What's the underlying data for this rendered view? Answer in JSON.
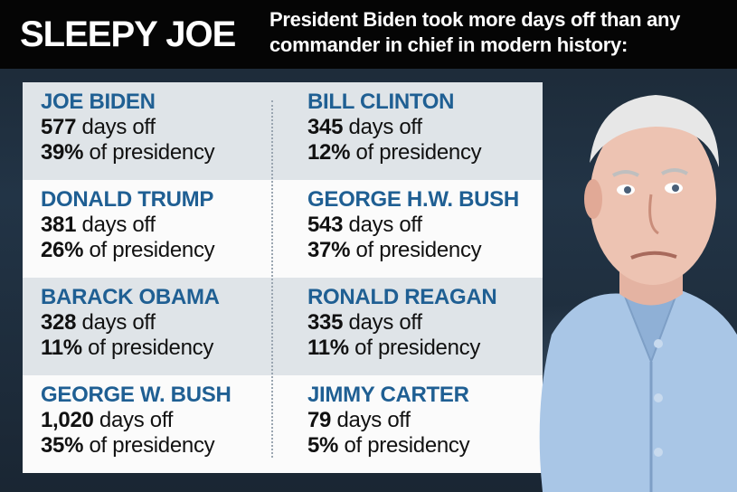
{
  "title": "SLEEPY JOE",
  "subtitle": "President Biden took more days off than any commander in chief in modern history:",
  "rows": [
    {
      "left": {
        "name": "JOE BIDEN",
        "days": "577",
        "days_suffix": " days off",
        "pct": "39%",
        "pct_suffix": " of presidency"
      },
      "right": {
        "name": "BILL CLINTON",
        "days": "345",
        "days_suffix": " days off",
        "pct": "12%",
        "pct_suffix": " of presidency"
      }
    },
    {
      "left": {
        "name": "DONALD TRUMP",
        "days": "381",
        "days_suffix": " days off",
        "pct": "26%",
        "pct_suffix": " of presidency"
      },
      "right": {
        "name": "GEORGE H.W. BUSH",
        "days": "543",
        "days_suffix": " days off",
        "pct": "37%",
        "pct_suffix": " of presidency"
      }
    },
    {
      "left": {
        "name": "BARACK OBAMA",
        "days": "328",
        "days_suffix": " days off",
        "pct": "11%",
        "pct_suffix": " of presidency"
      },
      "right": {
        "name": "RONALD REAGAN",
        "days": "335",
        "days_suffix": " days off",
        "pct": "11%",
        "pct_suffix": " of presidency"
      }
    },
    {
      "left": {
        "name": "GEORGE W. BUSH",
        "days": "1,020",
        "days_suffix": " days off",
        "pct": "35%",
        "pct_suffix": " of presidency"
      },
      "right": {
        "name": "JIMMY CARTER",
        "days": "79",
        "days_suffix": " days off",
        "pct": "5%",
        "pct_suffix": " of presidency"
      }
    }
  ],
  "colors": {
    "header_bg": "#050505",
    "name_blue": "#1f5f93",
    "row_shade": "#dfe4e8",
    "row_white": "#fbfbfb",
    "shirt_blue": "#a9c6e6"
  }
}
